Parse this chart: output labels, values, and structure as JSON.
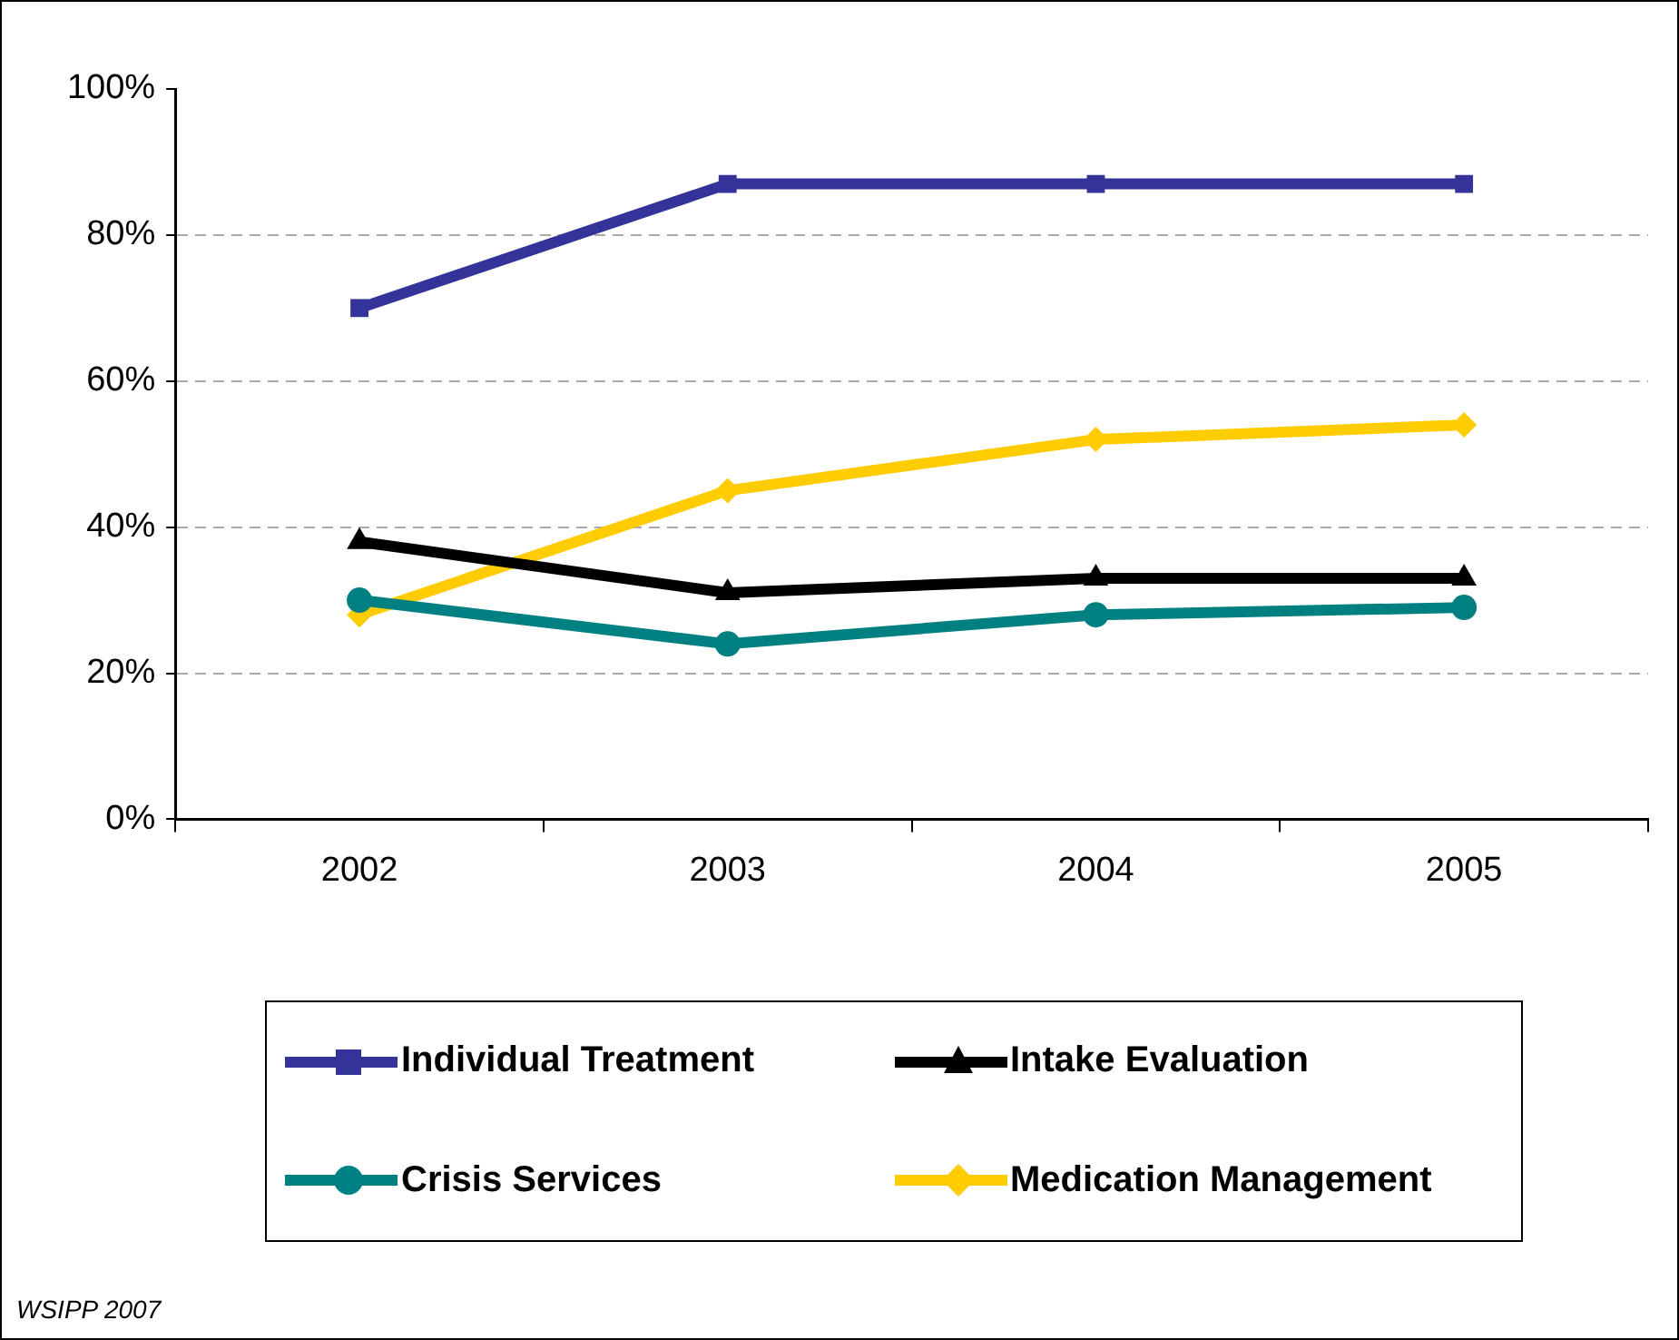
{
  "chart_data": {
    "type": "line",
    "categories": [
      "2002",
      "2003",
      "2004",
      "2005"
    ],
    "ylim": [
      0,
      100
    ],
    "yticks": [
      {
        "value": 0,
        "label": "0%"
      },
      {
        "value": 20,
        "label": "20%"
      },
      {
        "value": 40,
        "label": "40%"
      },
      {
        "value": 60,
        "label": "60%"
      },
      {
        "value": 80,
        "label": "80%"
      },
      {
        "value": 100,
        "label": "100%"
      }
    ],
    "grid": "y",
    "legend": "bottom",
    "line_style": "solid",
    "series": [
      {
        "name": "Individual Treatment",
        "color": "#333399",
        "marker": "square",
        "values": [
          70,
          87,
          87,
          87
        ]
      },
      {
        "name": "Intake Evaluation",
        "color": "#000000",
        "marker": "triangle",
        "values": [
          38,
          31,
          33,
          33
        ]
      },
      {
        "name": "Crisis Services",
        "color": "#008080",
        "marker": "circle",
        "values": [
          30,
          24,
          28,
          29
        ]
      },
      {
        "name": "Medication Management",
        "color": "#ffcc00",
        "marker": "diamond",
        "values": [
          28,
          45,
          52,
          54
        ]
      }
    ],
    "annotations": [
      "WSIPP 2007"
    ]
  }
}
